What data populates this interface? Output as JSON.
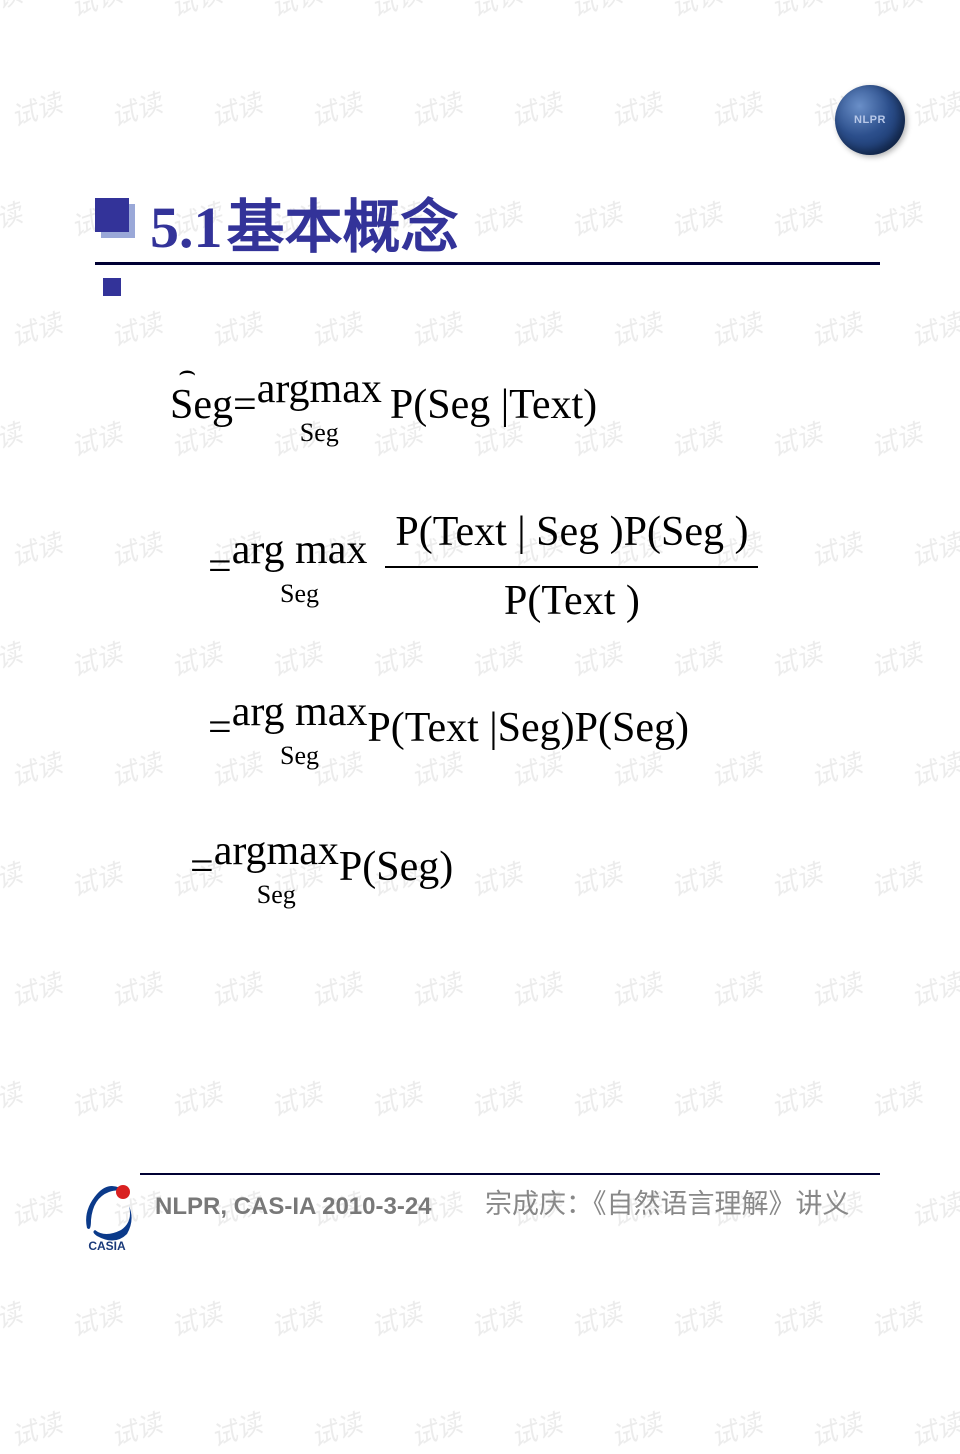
{
  "watermark": {
    "text": "试读",
    "color": "rgba(128,128,128,0.15)"
  },
  "logo_nlpr": {
    "label": "NLPR",
    "gradient_from": "#6a8fc8",
    "gradient_to": "#0f2a5a"
  },
  "title": {
    "number": "5.1",
    "text": "基本概念",
    "color": "#333399",
    "bullet_color": "#333399",
    "underline_color": "#000033"
  },
  "formula": {
    "line1": {
      "lhs": "Seg",
      "hat": "⌢",
      "eq": " = ",
      "op": "argmax",
      "sub": "Seg",
      "rhs": "P(Seg |Text)"
    },
    "line2": {
      "eq": "= ",
      "op": "arg max",
      "sub": "Seg",
      "num": "P(Text | Seg )P(Seg )",
      "den": "P(Text )"
    },
    "line3": {
      "eq": "= ",
      "op": "arg max",
      "sub": "Seg",
      "rhs": " P(Text |Seg)P(Seg)"
    },
    "line4": {
      "eq": "= ",
      "op": "argmax",
      "sub": "Seg",
      "rhs": " P(Seg)"
    }
  },
  "footer": {
    "left": "NLPR, CAS-IA    2010-3-24",
    "right": "宗成庆：《自然语言理解》讲义",
    "line_color": "#000033",
    "text_color": "#787878"
  },
  "casia_logo": {
    "swoosh_color": "#0b3a8a",
    "dot_color": "#d92020",
    "label": "CASIA",
    "label_color": "#1a3a7a"
  }
}
